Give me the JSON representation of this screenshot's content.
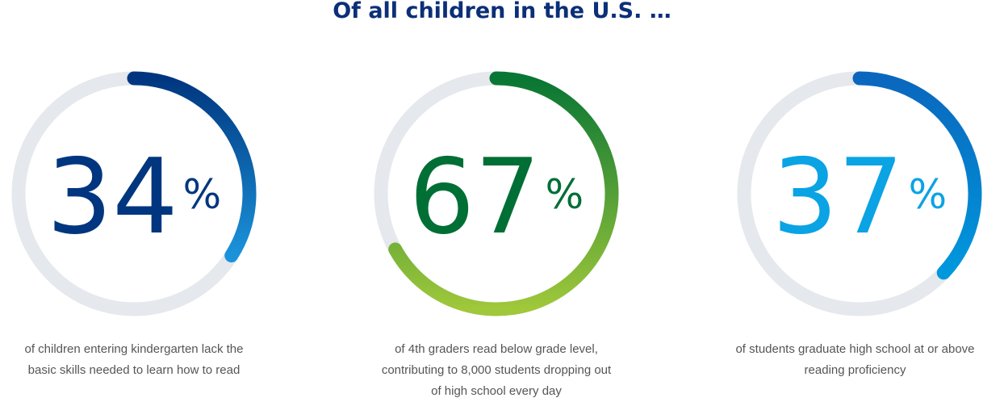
{
  "title": "Of all children in the U.S. …",
  "chart_data": [
    {
      "type": "donut",
      "values": [
        34
      ],
      "value_labels": [
        "34%"
      ],
      "ylim": [
        0,
        100
      ],
      "track_color": "#e5e8ec",
      "colors": [
        "#00367f",
        "#1b93da"
      ],
      "label_color": "#00367f",
      "caption": [
        "of children entering kindergarten lack the",
        "basic skills needed to learn how to read"
      ]
    },
    {
      "type": "donut",
      "values": [
        67
      ],
      "value_labels": [
        "67%"
      ],
      "ylim": [
        0,
        100
      ],
      "track_color": "#e5e8ec",
      "colors": [
        "#087634",
        "#a0c83a"
      ],
      "label_color": "#006f35",
      "caption": [
        "of 4th graders read below grade level,",
        "contributing to 8,000 students dropping out",
        "of high school every day"
      ]
    },
    {
      "type": "donut",
      "values": [
        37
      ],
      "value_labels": [
        "37%"
      ],
      "ylim": [
        0,
        100
      ],
      "track_color": "#e5e8ec",
      "colors": [
        "#0a67bd",
        "#0098dd"
      ],
      "label_color": "#0aa3e4",
      "caption": [
        "of students graduate high school at or above",
        "reading proficiency"
      ]
    }
  ]
}
